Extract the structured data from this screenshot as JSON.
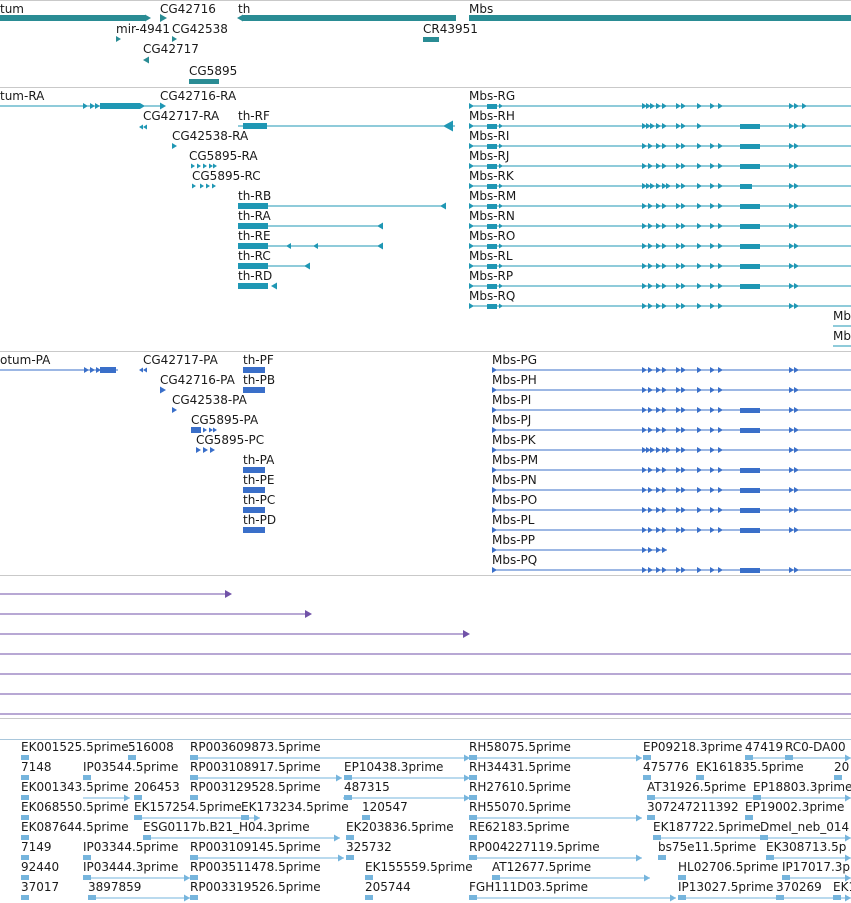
{
  "colors": {
    "gene": "#2a8c94",
    "transcript": "#1f97b4",
    "protein": "#3a6fc9",
    "rna": "#7152a8",
    "est": "#76b5dd",
    "divider": "#c9c9c9",
    "text": "#1a1a1a"
  },
  "tracks": {
    "genes": {
      "labels": [
        {
          "text": "tum"
        },
        {
          "text": "CG42716"
        },
        {
          "text": "th"
        },
        {
          "text": "Mbs"
        },
        {
          "text": "mir-4941"
        },
        {
          "text": "CG42538"
        },
        {
          "text": "CR43951"
        },
        {
          "text": "CG42717"
        },
        {
          "text": "CG5895"
        }
      ]
    },
    "transcripts": {
      "labels": [
        {
          "text": "tum-RA"
        },
        {
          "text": "CG42716-RA"
        },
        {
          "text": "CG42717-RA"
        },
        {
          "text": "th-RF"
        },
        {
          "text": "CG42538-RA"
        },
        {
          "text": "CG5895-RA"
        },
        {
          "text": "CG5895-RC"
        },
        {
          "text": "th-RB"
        },
        {
          "text": "th-RA"
        },
        {
          "text": "th-RE"
        },
        {
          "text": "th-RC"
        },
        {
          "text": "th-RD"
        },
        {
          "text": "Mbs-RG"
        },
        {
          "text": "Mbs-RH"
        },
        {
          "text": "Mbs-RI"
        },
        {
          "text": "Mbs-RJ"
        },
        {
          "text": "Mbs-RK"
        },
        {
          "text": "Mbs-RM"
        },
        {
          "text": "Mbs-RN"
        },
        {
          "text": "Mbs-RO"
        },
        {
          "text": "Mbs-RL"
        },
        {
          "text": "Mbs-RP"
        },
        {
          "text": "Mbs-RQ"
        },
        {
          "text": "Mb"
        },
        {
          "text": "Mb"
        }
      ]
    },
    "proteins": {
      "labels": [
        {
          "text": "otum-PA"
        },
        {
          "text": "CG42717-PA"
        },
        {
          "text": "th-PF"
        },
        {
          "text": "CG42716-PA"
        },
        {
          "text": "th-PB"
        },
        {
          "text": "CG42538-PA"
        },
        {
          "text": "CG5895-PA"
        },
        {
          "text": "CG5895-PC"
        },
        {
          "text": "th-PA"
        },
        {
          "text": "th-PE"
        },
        {
          "text": "th-PC"
        },
        {
          "text": "th-PD"
        },
        {
          "text": "Mbs-PG"
        },
        {
          "text": "Mbs-PH"
        },
        {
          "text": "Mbs-PI"
        },
        {
          "text": "Mbs-PJ"
        },
        {
          "text": "Mbs-PK"
        },
        {
          "text": "Mbs-PM"
        },
        {
          "text": "Mbs-PN"
        },
        {
          "text": "Mbs-PO"
        },
        {
          "text": "Mbs-PL"
        },
        {
          "text": "Mbs-PP"
        },
        {
          "text": "Mbs-PQ"
        }
      ]
    },
    "ests": {
      "labels": [
        {
          "text": "EK001525.5prime"
        },
        {
          "text": "516008"
        },
        {
          "text": "RP003609873.5prime"
        },
        {
          "text": "RH58075.5prime"
        },
        {
          "text": "EP09218.3prime"
        },
        {
          "text": "47419"
        },
        {
          "text": "RC0-DA00"
        },
        {
          "text": "7148"
        },
        {
          "text": "IP03544.5prime"
        },
        {
          "text": "RP003108917.5prime"
        },
        {
          "text": "EP10438.3prime"
        },
        {
          "text": "RH34431.5prime"
        },
        {
          "text": "475776"
        },
        {
          "text": "EK161835.5prime"
        },
        {
          "text": "20"
        },
        {
          "text": "EK001343.5prime"
        },
        {
          "text": "206453"
        },
        {
          "text": "RP003129528.5prime"
        },
        {
          "text": "487315"
        },
        {
          "text": "RH27610.5prime"
        },
        {
          "text": "AT31926.5prime"
        },
        {
          "text": "EP18803.3prime"
        },
        {
          "text": "EK068550.5prime"
        },
        {
          "text": "EK157254.5prime"
        },
        {
          "text": "EK173234.5prime"
        },
        {
          "text": "120547"
        },
        {
          "text": "RH55070.5prime"
        },
        {
          "text": "307247211392"
        },
        {
          "text": "EP19002.3prime"
        },
        {
          "text": "EK087644.5prime"
        },
        {
          "text": "ESG0117b.B21_H04.3prime"
        },
        {
          "text": "EK203836.5prime"
        },
        {
          "text": "RE62183.5prime"
        },
        {
          "text": "EK187722.5prime"
        },
        {
          "text": "Dmel_neb_014"
        },
        {
          "text": "7149"
        },
        {
          "text": "IP03344.5prime"
        },
        {
          "text": "RP003109145.5prime"
        },
        {
          "text": "325732"
        },
        {
          "text": "RP004227119.5prime"
        },
        {
          "text": "bs75e11.5prime"
        },
        {
          "text": "EK308713.5p"
        },
        {
          "text": "92440"
        },
        {
          "text": "IP03444.3prime"
        },
        {
          "text": "RP003511478.5prime"
        },
        {
          "text": "EK155559.5prime"
        },
        {
          "text": "AT12677.5prime"
        },
        {
          "text": "HL02706.5prime"
        },
        {
          "text": "IP17017.3p"
        },
        {
          "text": "37017"
        },
        {
          "text": "3897859"
        },
        {
          "text": "RP003319526.5prime"
        },
        {
          "text": "205744"
        },
        {
          "text": "FGH111D03.5prime"
        },
        {
          "text": "IP13027.5prime"
        },
        {
          "text": "370269"
        },
        {
          "text": "EK1"
        }
      ]
    }
  }
}
